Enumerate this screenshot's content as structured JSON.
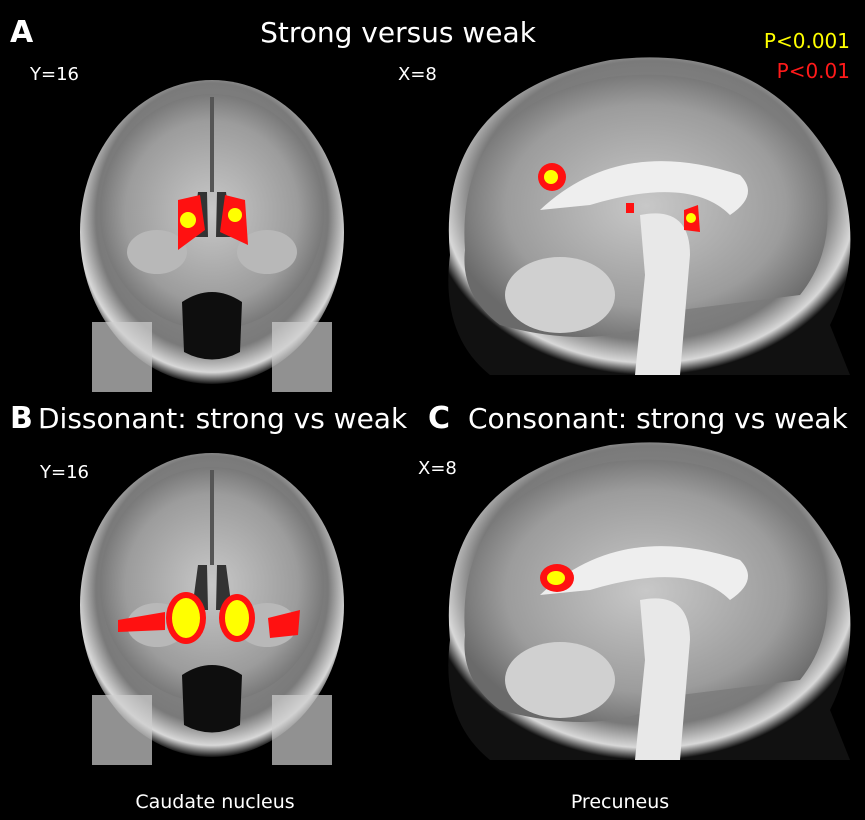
{
  "panels": [
    {
      "label": "A",
      "title": "Strong versus weak",
      "slices": [
        "Y=16",
        "X=8"
      ]
    },
    {
      "label": "B",
      "title": "Dissonant: strong vs weak",
      "slices": [
        "Y=16"
      ]
    },
    {
      "label": "C",
      "title": "Consonant: strong vs weak",
      "slices": [
        "X=8"
      ]
    }
  ],
  "legend": [
    "P<0.001",
    "P<0.01"
  ],
  "captions": [
    "Caudate nucleus",
    "Precuneus"
  ]
}
